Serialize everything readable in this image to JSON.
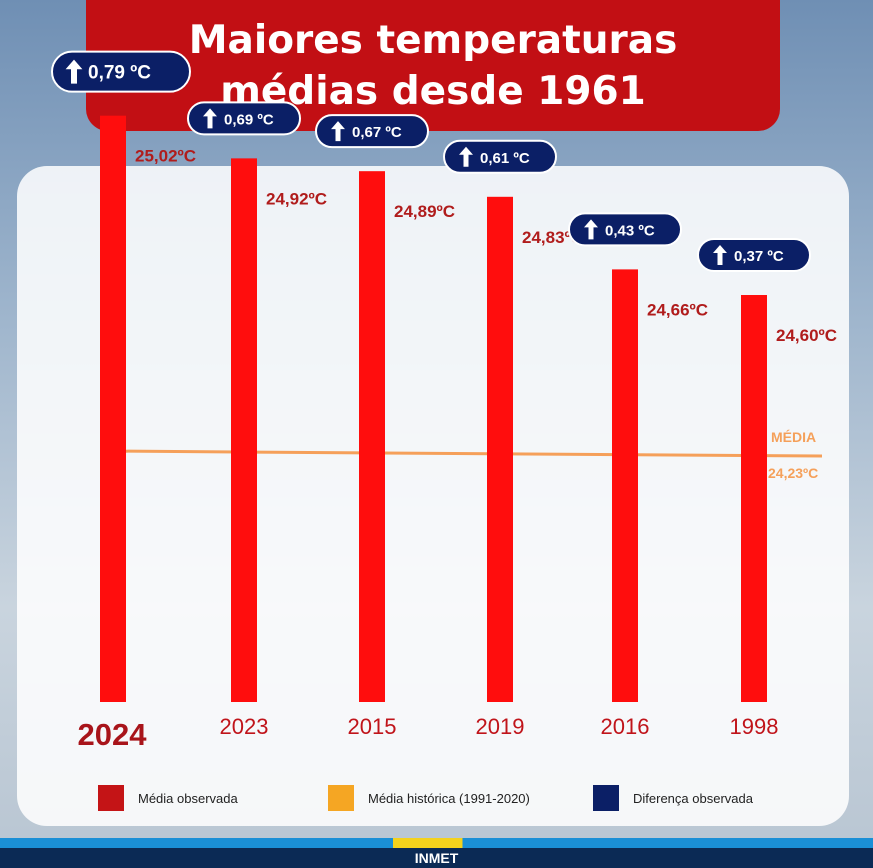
{
  "chart_data": {
    "type": "bar",
    "title_lines": [
      "Maiores temperaturas",
      "médias desde 1961"
    ],
    "categories": [
      "2024",
      "2023",
      "2015",
      "2019",
      "2016",
      "1998"
    ],
    "values": [
      25.02,
      24.92,
      24.89,
      24.83,
      24.66,
      24.6
    ],
    "value_labels": [
      "25,02ºC",
      "24,92ºC",
      "24,89ºC",
      "24,83ºC",
      "24,66ºC",
      "24,60ºC"
    ],
    "differences": [
      "0,79 ºC",
      "0,69 ºC",
      "0,67 ºC",
      "0,61 ºC",
      "0,43 ºC",
      "0,37 ºC"
    ],
    "reference_line": {
      "label": "MÉDIA",
      "value_label": "24,23ºC",
      "value": 24.23
    },
    "legend": [
      "Média observada",
      "Média histórica (1991-2020)",
      "Diferença observada"
    ],
    "colors": {
      "bar": "#ff0d0d",
      "value_text": "#b01c1c",
      "reference": "#f5a05a",
      "badge": "#0b1f66",
      "legend_bar": "#c41416",
      "legend_ref": "#f5a623",
      "legend_diff": "#0b1f66"
    }
  },
  "footer": {
    "label": "INMET"
  }
}
